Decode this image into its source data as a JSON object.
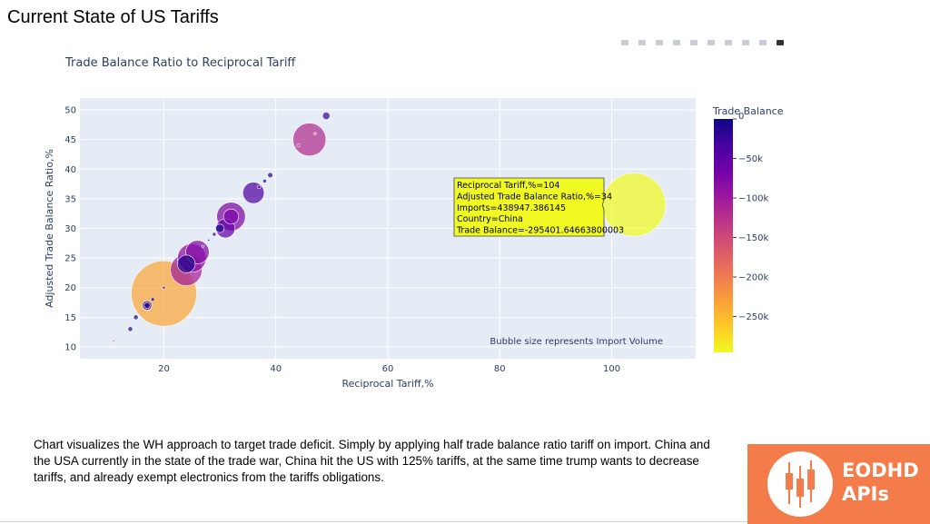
{
  "page": {
    "title": "Current State of US Tariffs",
    "caption": "Chart visualizes the WH approach to target trade deficit. Simply by applying half trade balance ratio tariff on import. China and the USA currently in the state of the trade war, China hit the US with 125% tariffs, at the same time trump wants to decrease tariffs, and already exempt electronics from the tariffs obligations."
  },
  "logo": {
    "line1": "EODHD",
    "line2": "APIs",
    "background": "#f47b4a"
  },
  "modebar_icons": [
    "camera-icon",
    "zoom-icon",
    "pan-icon",
    "box-select-icon",
    "lasso-icon",
    "zoom-in-icon",
    "zoom-out-icon",
    "autoscale-icon",
    "reset-axes-icon",
    "plotly-logo-icon"
  ],
  "chart_data": {
    "type": "scatter",
    "subtype": "bubble",
    "title": "Trade Balance Ratio to Reciprocal Tariff",
    "xlabel": "Reciprocal Tariff,%",
    "ylabel": "Adjusted Trade Balance Ratio,%",
    "xlim": [
      5,
      115
    ],
    "ylim": [
      8,
      52
    ],
    "xticks": [
      20,
      40,
      60,
      80,
      100
    ],
    "yticks": [
      10,
      15,
      20,
      25,
      30,
      35,
      40,
      45,
      50
    ],
    "grid": true,
    "annotation": "Bubble size represents Import Volume",
    "colorbar": {
      "title": "Trade Balance",
      "range": [
        -295401,
        0
      ],
      "ticks": [
        0,
        -50000,
        -100000,
        -150000,
        -200000,
        -250000
      ],
      "tick_labels": [
        "0",
        "−50k",
        "−100k",
        "−150k",
        "−200k",
        "−250k"
      ],
      "colorscale": [
        "#0d0887",
        "#46039f",
        "#7201a8",
        "#9c179e",
        "#bd3786",
        "#d8576b",
        "#ed7953",
        "#fb9f3a",
        "#fdca26",
        "#f0f921"
      ]
    },
    "points": [
      {
        "x": 104,
        "y": 34,
        "imports": 438947,
        "balance": -295401
      },
      {
        "x": 20,
        "y": 19,
        "imports": 470000,
        "balance": -235000
      },
      {
        "x": 46,
        "y": 45,
        "imports": 120000,
        "balance": -120000
      },
      {
        "x": 24,
        "y": 23,
        "imports": 110000,
        "balance": -105000
      },
      {
        "x": 25,
        "y": 25,
        "imports": 90000,
        "balance": -85000
      },
      {
        "x": 26,
        "y": 26,
        "imports": 60000,
        "balance": -80000
      },
      {
        "x": 32,
        "y": 32,
        "imports": 90000,
        "balance": -75000
      },
      {
        "x": 32,
        "y": 32,
        "imports": 25000,
        "balance": -70000
      },
      {
        "x": 31,
        "y": 30,
        "imports": 40000,
        "balance": -55000
      },
      {
        "x": 36,
        "y": 36,
        "imports": 50000,
        "balance": -40000
      },
      {
        "x": 24,
        "y": 24,
        "imports": 35000,
        "balance": -10000
      },
      {
        "x": 49,
        "y": 49,
        "imports": 6000,
        "balance": -25000
      },
      {
        "x": 30,
        "y": 30,
        "imports": 8000,
        "balance": -10000
      },
      {
        "x": 17,
        "y": 17,
        "imports": 10000,
        "balance": -20000
      },
      {
        "x": 17,
        "y": 17,
        "imports": 4000,
        "balance": -8000
      },
      {
        "x": 39,
        "y": 39,
        "imports": 3000,
        "balance": -15000
      },
      {
        "x": 38,
        "y": 38,
        "imports": 1500,
        "balance": -12000
      },
      {
        "x": 37,
        "y": 37,
        "imports": 1200,
        "balance": -60000
      },
      {
        "x": 29,
        "y": 29,
        "imports": 1500,
        "balance": -20000
      },
      {
        "x": 28,
        "y": 28,
        "imports": 600,
        "balance": -30000
      },
      {
        "x": 27,
        "y": 27,
        "imports": 500,
        "balance": -60000
      },
      {
        "x": 15,
        "y": 15,
        "imports": 2500,
        "balance": -10000
      },
      {
        "x": 14,
        "y": 13,
        "imports": 2500,
        "balance": -20000
      },
      {
        "x": 18,
        "y": 18,
        "imports": 1500,
        "balance": -10000
      },
      {
        "x": 20,
        "y": 20,
        "imports": 1000,
        "balance": -40000
      },
      {
        "x": 44,
        "y": 44,
        "imports": 900,
        "balance": -130000
      },
      {
        "x": 47,
        "y": 46,
        "imports": 600,
        "balance": -200000
      },
      {
        "x": 11,
        "y": 11,
        "imports": 200,
        "balance": -150000
      }
    ],
    "hover": {
      "lines": [
        "Reciprocal Tariff,%=104",
        "Adjusted Trade Balance Ratio,%=34",
        "Imports=438947.386145",
        "Country=China",
        "Trade Balance=-295401.64663800003"
      ],
      "point_index": 0
    }
  }
}
